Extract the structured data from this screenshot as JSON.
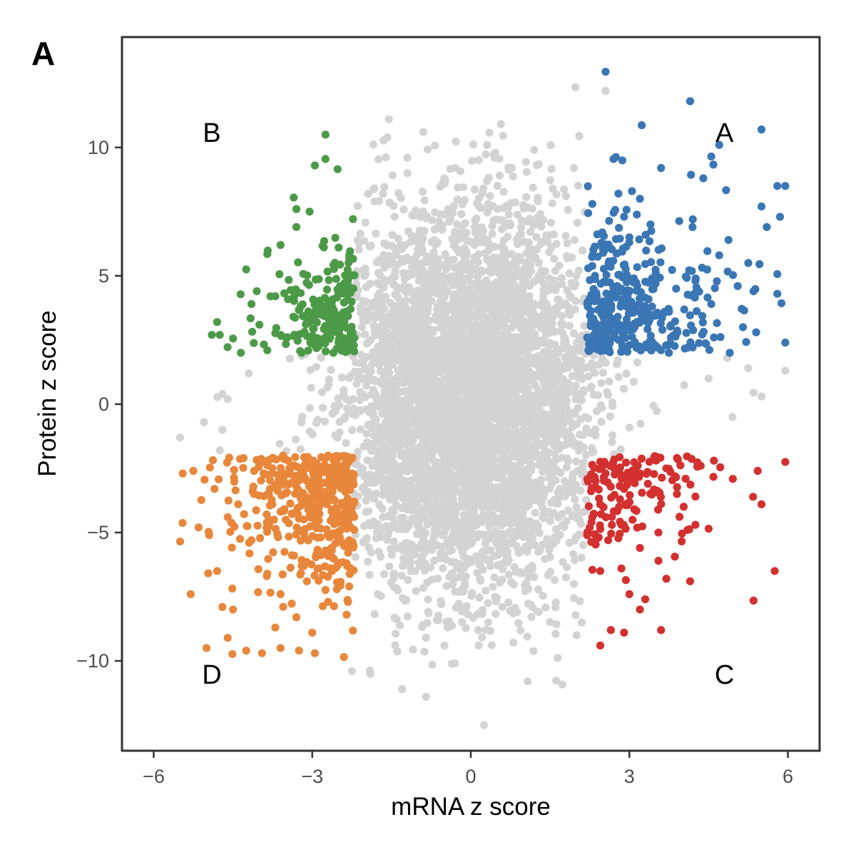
{
  "panel_label": "A",
  "chart_data": {
    "type": "scatter",
    "xlabel": "mRNA z score",
    "ylabel": "Protein z score",
    "xlim": [
      -6.6,
      6.6
    ],
    "ylim": [
      -13.5,
      14.3
    ],
    "x_ticks": [
      {
        "value": -6,
        "label": "−6"
      },
      {
        "value": -3,
        "label": "−3"
      },
      {
        "value": 0,
        "label": "0"
      },
      {
        "value": 3,
        "label": "3"
      },
      {
        "value": 6,
        "label": "6"
      }
    ],
    "y_ticks": [
      {
        "value": -10,
        "label": "−10"
      },
      {
        "value": -5,
        "label": "−5"
      },
      {
        "value": 0,
        "label": "0"
      },
      {
        "value": 5,
        "label": "5"
      },
      {
        "value": 10,
        "label": "10"
      }
    ],
    "grid": false,
    "quadrant_labels": [
      {
        "label": "A",
        "x": 4.8,
        "y": 10.6
      },
      {
        "label": "B",
        "x": -4.9,
        "y": 10.6
      },
      {
        "label": "C",
        "x": 4.8,
        "y": -10.5
      },
      {
        "label": "D",
        "x": -4.9,
        "y": -10.5
      }
    ],
    "groups": [
      {
        "id": "background",
        "color": "#d3d3d3"
      },
      {
        "id": "A",
        "color": "#3a76b4",
        "region": {
          "x": [
            2.2,
            6.0
          ],
          "y": [
            2.0,
            13.0
          ]
        }
      },
      {
        "id": "B",
        "color": "#4c9a47",
        "region": {
          "x": [
            -4.8,
            -2.2
          ],
          "y": [
            2.0,
            10.5
          ]
        }
      },
      {
        "id": "C",
        "color": "#d33030",
        "region": {
          "x": [
            2.2,
            6.0
          ],
          "y": [
            -9.5,
            -2.0
          ]
        }
      },
      {
        "id": "D",
        "color": "#e8873b",
        "region": {
          "x": [
            -5.6,
            -2.2
          ],
          "y": [
            -10.0,
            -2.0
          ]
        }
      }
    ],
    "series": [
      {
        "group": "background",
        "points": [
          [
            2.55,
            12.2
          ],
          [
            1.98,
            12.35
          ],
          [
            -1.55,
            11.1
          ],
          [
            -0.9,
            10.6
          ],
          [
            2.05,
            10.45
          ],
          [
            1.2,
            9.9
          ],
          [
            -1.2,
            9.6
          ],
          [
            -1.2,
            9.0
          ],
          [
            1.95,
            9.2
          ],
          [
            -0.5,
            8.8
          ],
          [
            1.8,
            8.1
          ],
          [
            0.25,
            -12.5
          ],
          [
            -0.85,
            -11.4
          ],
          [
            -1.3,
            -11.1
          ],
          [
            -2.25,
            -10.4
          ],
          [
            -5.5,
            -1.3
          ],
          [
            -5.05,
            -0.7
          ],
          [
            -4.7,
            -1.0
          ],
          [
            -4.7,
            0.4
          ],
          [
            -4.75,
            -1.8
          ],
          [
            -4.6,
            0.2
          ],
          [
            5.95,
            1.3
          ],
          [
            5.35,
            0.45
          ],
          [
            5.5,
            0.3
          ],
          [
            4.95,
            -0.5
          ],
          [
            4.85,
            1.8
          ],
          [
            5.25,
            1.4
          ],
          [
            1.95,
            -7.0
          ],
          [
            2.1,
            -8.5
          ],
          [
            0.15,
            -9.4
          ],
          [
            -0.3,
            -10.1
          ],
          [
            -1.9,
            -10.5
          ],
          [
            2.0,
            -9.0
          ],
          [
            -4.2,
            1.2
          ],
          [
            4.5,
            1.0
          ]
        ]
      },
      {
        "group": "A",
        "points": [
          [
            2.55,
            12.95
          ],
          [
            4.15,
            11.8
          ],
          [
            5.5,
            10.7
          ],
          [
            4.7,
            10.1
          ],
          [
            4.55,
            9.65
          ],
          [
            2.7,
            9.55
          ],
          [
            3.6,
            9.2
          ],
          [
            4.4,
            8.8
          ],
          [
            5.8,
            8.5
          ],
          [
            5.95,
            8.5
          ],
          [
            3.05,
            8.3
          ],
          [
            3.2,
            8.0
          ],
          [
            5.85,
            7.3
          ],
          [
            5.5,
            7.7
          ],
          [
            2.3,
            7.8
          ],
          [
            2.9,
            7.3
          ],
          [
            3.4,
            7.0
          ],
          [
            4.2,
            7.2
          ],
          [
            5.6,
            6.9
          ],
          [
            3.0,
            6.5
          ],
          [
            2.55,
            6.2
          ],
          [
            4.7,
            5.8
          ],
          [
            5.25,
            5.5
          ],
          [
            2.35,
            5.0
          ],
          [
            3.5,
            5.1
          ],
          [
            4.25,
            4.8
          ],
          [
            5.05,
            4.6
          ],
          [
            5.35,
            4.4
          ],
          [
            5.8,
            4.3
          ],
          [
            2.25,
            4.0
          ],
          [
            3.05,
            3.8
          ],
          [
            3.75,
            3.6
          ],
          [
            4.55,
            3.9
          ],
          [
            5.15,
            3.0
          ],
          [
            5.4,
            2.8
          ],
          [
            5.95,
            2.4
          ],
          [
            2.45,
            2.6
          ],
          [
            3.0,
            2.3
          ],
          [
            3.6,
            2.1
          ],
          [
            4.1,
            2.2
          ],
          [
            4.6,
            2.6
          ],
          [
            4.9,
            2.0
          ],
          [
            2.25,
            2.1
          ]
        ]
      },
      {
        "group": "B",
        "points": [
          [
            -2.75,
            10.5
          ],
          [
            -2.75,
            9.55
          ],
          [
            -2.95,
            9.3
          ],
          [
            -3.35,
            8.05
          ],
          [
            -3.3,
            7.6
          ],
          [
            -3.05,
            7.5
          ],
          [
            -3.3,
            6.9
          ],
          [
            -4.25,
            5.25
          ],
          [
            -3.85,
            5.85
          ],
          [
            -3.6,
            6.2
          ],
          [
            -4.05,
            4.4
          ],
          [
            -4.15,
            3.9
          ],
          [
            -4.8,
            3.2
          ],
          [
            -4.9,
            2.7
          ],
          [
            -4.75,
            2.7
          ],
          [
            -4.35,
            2.0
          ],
          [
            -3.85,
            2.1
          ],
          [
            -3.5,
            2.6
          ],
          [
            -3.05,
            3.2
          ],
          [
            -2.7,
            3.8
          ],
          [
            -2.45,
            4.5
          ],
          [
            -2.3,
            5.8
          ],
          [
            -2.5,
            6.1
          ],
          [
            -2.3,
            2.4
          ],
          [
            -3.2,
            2.0
          ],
          [
            -2.6,
            2.0
          ]
        ]
      },
      {
        "group": "C",
        "points": [
          [
            5.95,
            -2.25
          ],
          [
            4.6,
            -2.2
          ],
          [
            4.35,
            -2.4
          ],
          [
            3.7,
            -2.5
          ],
          [
            3.2,
            -2.7
          ],
          [
            2.55,
            -2.7
          ],
          [
            2.9,
            -3.3
          ],
          [
            3.35,
            -3.1
          ],
          [
            3.9,
            -3.5
          ],
          [
            4.25,
            -3.6
          ],
          [
            2.3,
            -4.4
          ],
          [
            2.85,
            -4.7
          ],
          [
            3.55,
            -5.0
          ],
          [
            4.1,
            -4.9
          ],
          [
            4.25,
            -4.7
          ],
          [
            2.6,
            -5.3
          ],
          [
            3.2,
            -5.6
          ],
          [
            3.55,
            -6.1
          ],
          [
            2.85,
            -6.4
          ],
          [
            2.45,
            -6.5
          ],
          [
            3.7,
            -6.8
          ],
          [
            4.15,
            -6.9
          ],
          [
            3.3,
            -7.6
          ],
          [
            3.0,
            -7.4
          ],
          [
            3.2,
            -8.0
          ],
          [
            2.65,
            -8.8
          ],
          [
            2.9,
            -8.9
          ],
          [
            3.6,
            -8.8
          ],
          [
            2.45,
            -9.4
          ],
          [
            5.5,
            -3.9
          ],
          [
            5.75,
            -6.5
          ],
          [
            5.35,
            -7.65
          ],
          [
            4.5,
            -4.85
          ],
          [
            2.25,
            -4.8
          ]
        ]
      },
      {
        "group": "D",
        "points": [
          [
            -5.5,
            -5.35
          ],
          [
            -5.45,
            -2.7
          ],
          [
            -5.25,
            -2.6
          ],
          [
            -5.3,
            -7.4
          ],
          [
            -5.15,
            -4.8
          ],
          [
            -4.95,
            -5.1
          ],
          [
            -5.0,
            -9.5
          ],
          [
            -4.8,
            -6.5
          ],
          [
            -4.6,
            -9.1
          ],
          [
            -4.5,
            -8.0
          ],
          [
            -4.25,
            -9.6
          ],
          [
            -3.95,
            -9.7
          ],
          [
            -3.6,
            -9.5
          ],
          [
            -3.25,
            -9.6
          ],
          [
            -2.95,
            -9.7
          ],
          [
            -2.4,
            -9.85
          ],
          [
            -4.4,
            -3.9
          ],
          [
            -4.15,
            -5.3
          ],
          [
            -3.85,
            -6.6
          ],
          [
            -3.6,
            -7.4
          ],
          [
            -3.3,
            -8.3
          ],
          [
            -3.0,
            -8.9
          ],
          [
            -2.7,
            -7.7
          ],
          [
            -2.35,
            -8.2
          ],
          [
            -2.35,
            -6.2
          ],
          [
            -2.45,
            -4.6
          ],
          [
            -2.35,
            -2.4
          ],
          [
            -2.6,
            -3.7
          ],
          [
            -2.9,
            -5.2
          ],
          [
            -3.2,
            -6.3
          ],
          [
            -3.5,
            -4.5
          ],
          [
            -3.8,
            -3.3
          ],
          [
            -4.1,
            -2.6
          ],
          [
            -4.3,
            -2.1
          ],
          [
            -3.55,
            -2.0
          ],
          [
            -2.95,
            -2.5
          ],
          [
            -2.7,
            -2.0
          ],
          [
            -2.3,
            -3.3
          ],
          [
            -2.3,
            -5.3
          ],
          [
            -2.3,
            -7.1
          ],
          [
            -4.6,
            -4.4
          ],
          [
            -4.85,
            -3.3
          ],
          [
            -4.7,
            -7.9
          ],
          [
            -3.1,
            -6.9
          ],
          [
            -3.7,
            -8.7
          ]
        ]
      }
    ]
  }
}
